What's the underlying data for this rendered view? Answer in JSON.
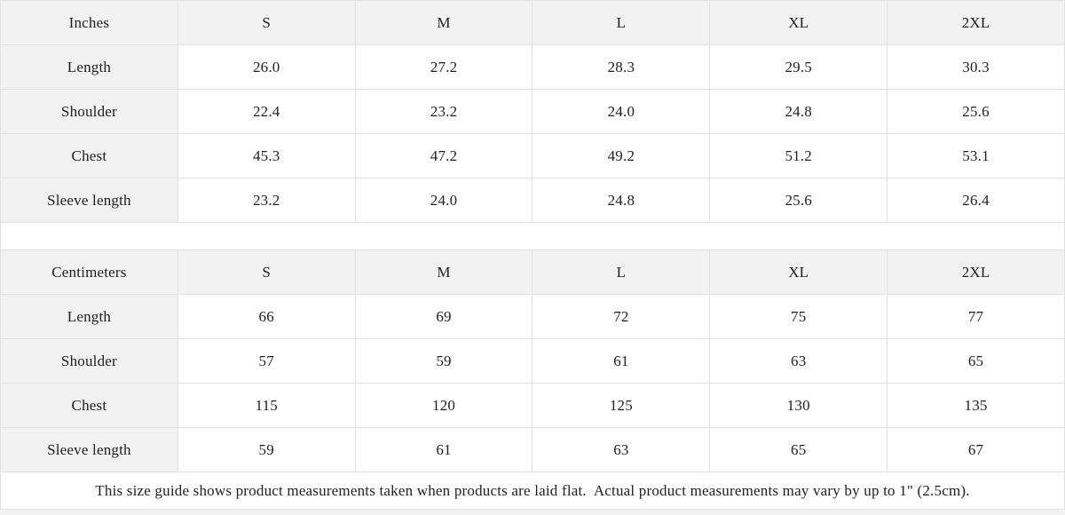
{
  "colors": {
    "header_bg": "#f1f1f1",
    "border": "#e0e0e0",
    "text": "#212121",
    "cell_bg": "#ffffff"
  },
  "inches_table": {
    "header": [
      "Inches",
      "S",
      "M",
      "L",
      "XL",
      "2XL"
    ],
    "rows": [
      {
        "label": "Length",
        "values": [
          "26.0",
          "27.2",
          "28.3",
          "29.5",
          "30.3"
        ]
      },
      {
        "label": "Shoulder",
        "values": [
          "22.4",
          "23.2",
          "24.0",
          "24.8",
          "25.6"
        ]
      },
      {
        "label": "Chest",
        "values": [
          "45.3",
          "47.2",
          "49.2",
          "51.2",
          "53.1"
        ]
      },
      {
        "label": "Sleeve length",
        "values": [
          "23.2",
          "24.0",
          "24.8",
          "25.6",
          "26.4"
        ]
      }
    ]
  },
  "centimeters_table": {
    "header": [
      "Centimeters",
      "S",
      "M",
      "L",
      "XL",
      "2XL"
    ],
    "rows": [
      {
        "label": "Length",
        "values": [
          "66",
          "69",
          "72",
          "75",
          "77"
        ]
      },
      {
        "label": "Shoulder",
        "values": [
          "57",
          "59",
          "61",
          "63",
          "65"
        ]
      },
      {
        "label": "Chest",
        "values": [
          "115",
          "120",
          "125",
          "130",
          "135"
        ]
      },
      {
        "label": "Sleeve length",
        "values": [
          "59",
          "61",
          "63",
          "65",
          "67"
        ]
      }
    ]
  },
  "footer": {
    "note": "This size guide shows product measurements taken when products are laid flat.  Actual product measurements may vary by up to 1\" (2.5cm)."
  }
}
